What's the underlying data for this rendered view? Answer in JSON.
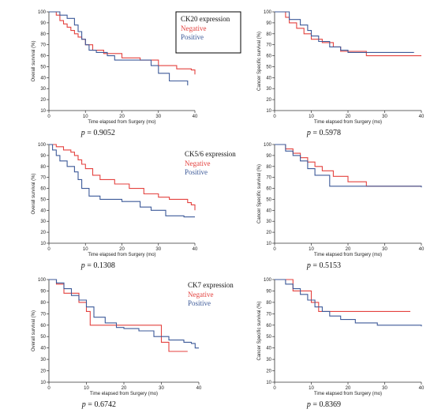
{
  "colors": {
    "negative": "#e4423f",
    "positive": "#3d5a99",
    "axis": "#333333"
  },
  "chart_data": [
    {
      "type": "line",
      "ylabel": "Overall survival (%)",
      "xlabel": "Time elapsed from Surgery (mo)",
      "xlim": [
        0,
        40
      ],
      "ylim": [
        10,
        100
      ],
      "xticks": [
        0,
        10,
        20,
        30,
        40
      ],
      "yticks": [
        10,
        20,
        30,
        40,
        50,
        60,
        70,
        80,
        90,
        100
      ],
      "p_value": "0.9052",
      "legend": {
        "title": "CK20 expression",
        "position": "top-right"
      },
      "series": [
        {
          "name": "Negative",
          "color": "#e4423f",
          "x": [
            0,
            2,
            3,
            4,
            5,
            6,
            7,
            8,
            9,
            10,
            12,
            15,
            20,
            25,
            30,
            35,
            39,
            40
          ],
          "y": [
            100,
            97,
            92,
            89,
            86,
            83,
            80,
            77,
            75,
            70,
            65,
            62,
            58,
            56,
            51,
            48,
            47,
            43
          ]
        },
        {
          "name": "Positive",
          "color": "#3d5a99",
          "x": [
            0,
            3,
            5,
            7,
            8,
            9,
            10,
            11,
            13,
            16,
            18,
            26,
            28,
            30,
            33,
            36,
            38
          ],
          "y": [
            100,
            97,
            94,
            88,
            82,
            75,
            70,
            65,
            63,
            60,
            56,
            56,
            51,
            44,
            37,
            37,
            33
          ]
        }
      ]
    },
    {
      "type": "line",
      "ylabel": "Cancer Specific survival (%)",
      "xlabel": "Time elapsed from Surgery (mo)",
      "xlim": [
        0,
        40
      ],
      "ylim": [
        10,
        100
      ],
      "xticks": [
        0,
        10,
        20,
        30,
        40
      ],
      "yticks": [
        10,
        20,
        30,
        40,
        50,
        60,
        70,
        80,
        90,
        100
      ],
      "p_value": "0.5978",
      "series": [
        {
          "name": "Negative",
          "color": "#e4423f",
          "x": [
            0,
            3,
            4,
            6,
            8,
            10,
            13,
            16,
            18,
            25,
            40
          ],
          "y": [
            100,
            95,
            90,
            85,
            80,
            75,
            72,
            68,
            64,
            60,
            60
          ]
        },
        {
          "name": "Positive",
          "color": "#3d5a99",
          "x": [
            0,
            4,
            7,
            9,
            10,
            12,
            15,
            18,
            20,
            38
          ],
          "y": [
            100,
            93,
            88,
            83,
            78,
            73,
            68,
            65,
            63,
            63
          ]
        }
      ]
    },
    {
      "type": "line",
      "ylabel": "Overall survival (%)",
      "xlabel": "Time elapsed from Surgery (mo)",
      "xlim": [
        0,
        40
      ],
      "ylim": [
        10,
        100
      ],
      "xticks": [
        0,
        10,
        20,
        30,
        40
      ],
      "yticks": [
        10,
        20,
        30,
        40,
        50,
        60,
        70,
        80,
        90,
        100
      ],
      "p_value": "0.1308",
      "legend": {
        "title": "CK5/6 expression",
        "position": "top-right"
      },
      "series": [
        {
          "name": "Negative",
          "color": "#e4423f",
          "x": [
            0,
            2,
            4,
            6,
            7,
            8,
            9,
            10,
            12,
            14,
            18,
            22,
            26,
            30,
            33,
            38,
            39,
            40
          ],
          "y": [
            100,
            98,
            95,
            93,
            90,
            86,
            82,
            78,
            72,
            68,
            64,
            60,
            55,
            52,
            50,
            47,
            45,
            40
          ]
        },
        {
          "name": "Positive",
          "color": "#3d5a99",
          "x": [
            0,
            1,
            2,
            3,
            5,
            7,
            8,
            9,
            11,
            14,
            20,
            25,
            28,
            32,
            37,
            40
          ],
          "y": [
            100,
            95,
            90,
            85,
            80,
            75,
            68,
            60,
            53,
            50,
            48,
            43,
            40,
            35,
            34,
            34
          ]
        }
      ]
    },
    {
      "type": "line",
      "ylabel": "Cancer Specific survival (%)",
      "xlabel": "Time elapsed from Surgery (mo)",
      "xlim": [
        0,
        40
      ],
      "ylim": [
        10,
        100
      ],
      "xticks": [
        0,
        10,
        20,
        30,
        40
      ],
      "yticks": [
        10,
        20,
        30,
        40,
        50,
        60,
        70,
        80,
        90,
        100
      ],
      "p_value": "0.5153",
      "series": [
        {
          "name": "Negative",
          "color": "#e4423f",
          "x": [
            0,
            3,
            5,
            7,
            9,
            11,
            13,
            16,
            20,
            25,
            40
          ],
          "y": [
            100,
            96,
            92,
            88,
            84,
            80,
            76,
            71,
            66,
            62,
            62
          ]
        },
        {
          "name": "Positive",
          "color": "#3d5a99",
          "x": [
            0,
            3,
            5,
            7,
            9,
            11,
            15,
            40
          ],
          "y": [
            100,
            94,
            90,
            85,
            78,
            72,
            62,
            61
          ]
        }
      ]
    },
    {
      "type": "line",
      "ylabel": "Overall survival (%)",
      "xlabel": "Time elapsed from Surgery (mo)",
      "xlim": [
        0,
        40
      ],
      "ylim": [
        10,
        100
      ],
      "xticks": [
        0,
        10,
        20,
        30,
        40
      ],
      "yticks": [
        10,
        20,
        30,
        40,
        50,
        60,
        70,
        80,
        90,
        100
      ],
      "p_value": "0.6742",
      "legend": {
        "title": "CK7 expression",
        "position": "top-right"
      },
      "series": [
        {
          "name": "Negative",
          "color": "#e4423f",
          "x": [
            0,
            2,
            4,
            6,
            8,
            10,
            11,
            14,
            16,
            28,
            30,
            32,
            37
          ],
          "y": [
            100,
            96,
            88,
            88,
            80,
            72,
            60,
            60,
            60,
            60,
            45,
            37,
            37
          ]
        },
        {
          "name": "Positive",
          "color": "#3d5a99",
          "x": [
            0,
            2,
            4,
            6,
            8,
            10,
            12,
            15,
            18,
            20,
            24,
            28,
            32,
            36,
            38,
            39,
            40
          ],
          "y": [
            100,
            97,
            92,
            86,
            82,
            76,
            67,
            62,
            58,
            57,
            55,
            50,
            47,
            45,
            44,
            40,
            40
          ]
        }
      ]
    },
    {
      "type": "line",
      "ylabel": "Cancer Specific survival (%)",
      "xlabel": "Time elapsed from Surgery (mo)",
      "xlim": [
        0,
        40
      ],
      "ylim": [
        10,
        100
      ],
      "xticks": [
        0,
        10,
        20,
        30,
        40
      ],
      "yticks": [
        10,
        20,
        30,
        40,
        50,
        60,
        70,
        80,
        90,
        100
      ],
      "p_value": "0.8369",
      "series": [
        {
          "name": "Negative",
          "color": "#e4423f",
          "x": [
            0,
            5,
            8,
            10,
            12,
            15,
            37
          ],
          "y": [
            100,
            90,
            90,
            80,
            72,
            72,
            72
          ]
        },
        {
          "name": "Positive",
          "color": "#3d5a99",
          "x": [
            0,
            3,
            5,
            7,
            9,
            11,
            13,
            15,
            18,
            22,
            28,
            40
          ],
          "y": [
            100,
            96,
            92,
            87,
            82,
            76,
            72,
            68,
            65,
            62,
            60,
            59
          ]
        }
      ]
    }
  ]
}
